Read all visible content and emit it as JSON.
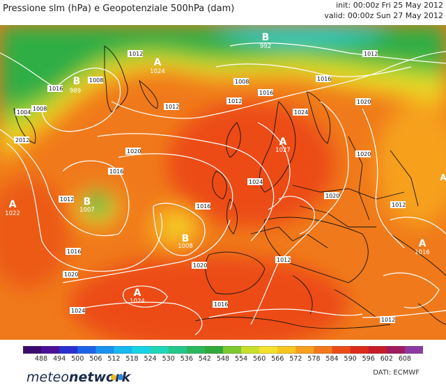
{
  "header": {
    "title": "Pressione slm (hPa) e Geopotenziale 500hPa (dam)",
    "init": "init: 00:00z Fri 25 May 2012",
    "valid": "valid: 00:00z Sun 27 May 2012"
  },
  "colors": {
    "green": "#1fae3a",
    "cyan": "#22d0d0",
    "yellow": "#f0e030",
    "orange": "#f29c1a",
    "deep_orange": "#ef5a18",
    "red": "#e8341c",
    "isobar": "#ffffff",
    "border": "#111111"
  },
  "colorbar": {
    "ticks": [
      "488",
      "494",
      "500",
      "506",
      "512",
      "518",
      "524",
      "530",
      "536",
      "542",
      "548",
      "554",
      "560",
      "566",
      "572",
      "578",
      "584",
      "590",
      "596",
      "602",
      "608"
    ],
    "colors": [
      "#3a0a6e",
      "#4b0f9a",
      "#2a2fd0",
      "#1b63e8",
      "#1a92ee",
      "#15b9f0",
      "#17d3e6",
      "#1fd6b8",
      "#24c88a",
      "#2ab75d",
      "#31a83a",
      "#7cc830",
      "#c8df2a",
      "#f3e12c",
      "#f8c420",
      "#f6a01d",
      "#f2781a",
      "#ec4c18",
      "#de2a1a",
      "#c81b28",
      "#a01a5e",
      "#8a3aa0"
    ]
  },
  "pressure_centers": [
    {
      "type": "A",
      "value": "1024"
    },
    {
      "type": "B",
      "value": "992"
    },
    {
      "type": "B",
      "value": "989"
    },
    {
      "type": "A",
      "value": "1027"
    },
    {
      "type": "B",
      "value": "1007"
    },
    {
      "type": "A",
      "value": "1022"
    },
    {
      "type": "B",
      "value": "1008"
    },
    {
      "type": "A",
      "value": "1024"
    },
    {
      "type": "A",
      "value": "1016"
    },
    {
      "type": "A",
      "value": ""
    }
  ],
  "isobar_labels": [
    "1008",
    "1012",
    "1016",
    "1008",
    "1004",
    "2012",
    "1012",
    "1008",
    "1016",
    "1012",
    "1020",
    "1024",
    "1016",
    "1020",
    "1020",
    "1012",
    "1016",
    "1016",
    "1020",
    "1024",
    "1024",
    "1020",
    "1012",
    "1016",
    "1020",
    "1012",
    "1016",
    "1012",
    "1012"
  ],
  "footer": {
    "logo_light": "meteo",
    "logo_bold": "network",
    "credit": "DATI:  ECMWF"
  }
}
